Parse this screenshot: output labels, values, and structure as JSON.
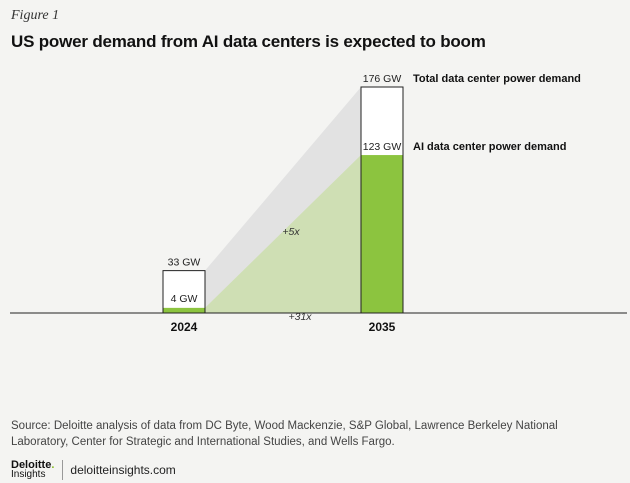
{
  "figure_label": "Figure 1",
  "title": "US power demand from AI data centers is expected to boom",
  "source": "Source: Deloitte analysis of data from DC Byte, Wood Mackenzie, S&P Global, Lawrence Berkeley National Laboratory, Center for Strategic and International Studies, and Wells Fargo.",
  "footer": {
    "logo_main": "Deloitte",
    "logo_dot": ".",
    "logo_sub": "Insights",
    "site": "deloitteinsights.com"
  },
  "colors": {
    "ai_bar": "#8cc43f",
    "ai_wedge": "#cfdfb4",
    "total_wedge": "#e2e2e2",
    "bar_outline": "#222222",
    "axis": "#222222"
  },
  "chart_data": {
    "type": "bar",
    "categories": [
      "2024",
      "2035"
    ],
    "series": [
      {
        "name": "Total data center power demand",
        "values": [
          33,
          176
        ],
        "labels": [
          "33 GW",
          "176 GW"
        ]
      },
      {
        "name": "AI data center power demand",
        "values": [
          4,
          123
        ],
        "labels": [
          "4 GW",
          "123 GW"
        ]
      }
    ],
    "growth_annotations": [
      {
        "series": "Total data center power demand",
        "text": "+5x"
      },
      {
        "series": "AI data center power demand",
        "text": "+31x"
      }
    ],
    "unit": "GW",
    "ylim": [
      0,
      176
    ],
    "grid": false,
    "legend": "labels beside the 2035 bar"
  }
}
